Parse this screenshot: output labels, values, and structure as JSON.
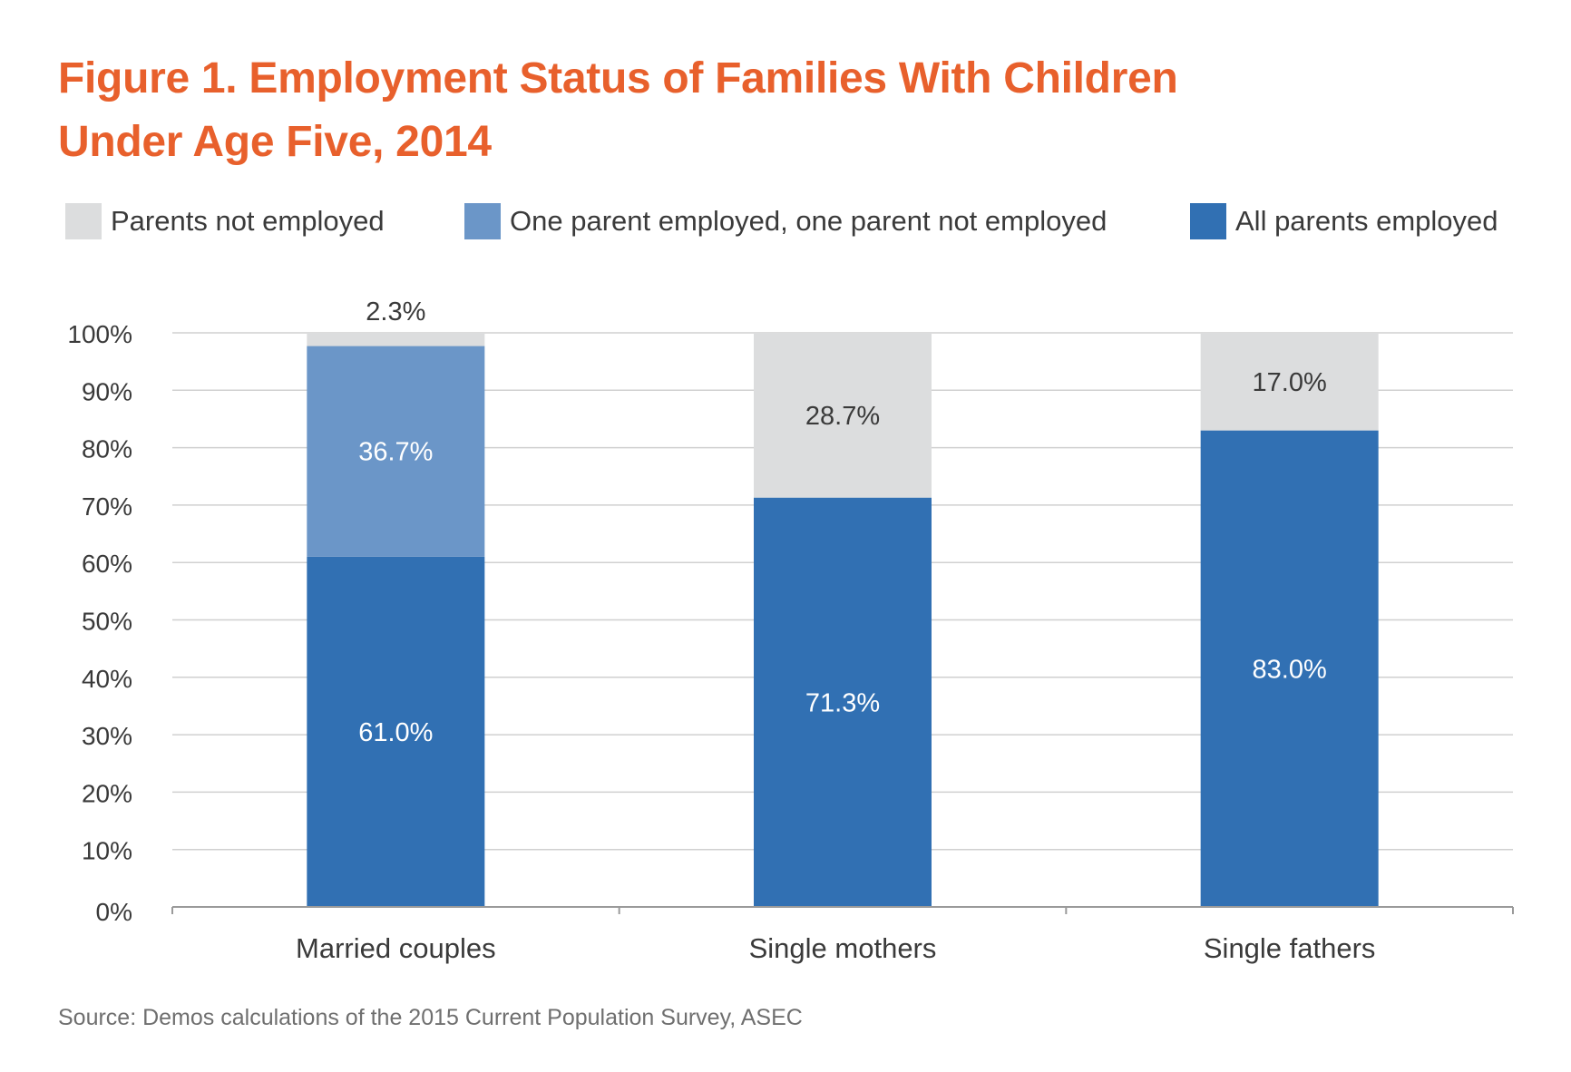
{
  "title_lines": [
    "Figure 1.  Employment Status of Families With Children",
    "Under Age Five, 2014"
  ],
  "source": "Source: Demos calculations of the 2015 Current Population Survey, ASEC",
  "colors": {
    "title": "#e8602c",
    "not_employed": "#dcddde",
    "one_employed": "#6b96c8",
    "all_employed": "#3170b3",
    "gridline": "#d0d0d0",
    "axis": "#9a9a9a",
    "text": "#3a3a3a"
  },
  "chart_data": {
    "type": "bar",
    "stacked": true,
    "title": "Figure 1.  Employment Status of Families With Children Under Age Five, 2014",
    "categories": [
      "Married couples",
      "Single mothers",
      "Single fathers"
    ],
    "series": [
      {
        "name": "All parents employed",
        "color": "#3170b3",
        "values": [
          61.0,
          71.3,
          83.0
        ],
        "labels": [
          "61.0%",
          "71.3%",
          "83.0%"
        ],
        "label_color": "#ffffff"
      },
      {
        "name": "One parent employed, one parent not employed",
        "color": "#6b96c8",
        "values": [
          36.7,
          0,
          0
        ],
        "labels": [
          "36.7%",
          "",
          ""
        ],
        "label_color": "#ffffff"
      },
      {
        "name": "Parents not employed",
        "color": "#dcddde",
        "values": [
          2.3,
          28.7,
          17.0
        ],
        "labels": [
          "2.3%",
          "28.7%",
          "17.0%"
        ],
        "label_color": "#3a3a3a"
      }
    ],
    "legend_order": [
      "Parents not employed",
      "One parent employed, one parent not employed",
      "All parents employed"
    ],
    "legend_position": "top",
    "ylim": [
      0,
      100
    ],
    "yticks": [
      0,
      10,
      20,
      30,
      40,
      50,
      60,
      70,
      80,
      90,
      100
    ],
    "ytick_labels": [
      "0%",
      "10%",
      "20%",
      "30%",
      "40%",
      "50%",
      "60%",
      "70%",
      "80%",
      "90%",
      "100%"
    ],
    "grid": true,
    "xlabel": "",
    "ylabel": ""
  }
}
